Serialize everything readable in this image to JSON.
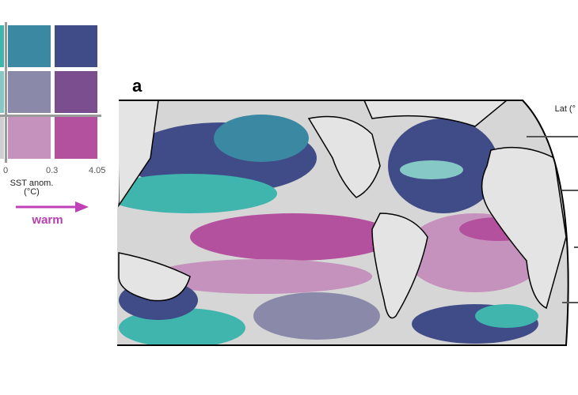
{
  "legend": {
    "cells": [
      [
        "#3fb5ae",
        "#3b88a2",
        "#3f4c88"
      ],
      [
        "#86c8c6",
        "#8a89a9",
        "#7a4e8f"
      ],
      [
        "#cfcfcf",
        "#c492bc",
        "#b4519f"
      ]
    ],
    "ticks": [
      "0",
      "0.3",
      "4.05"
    ],
    "xlabel": "SST anom.",
    "xunit": "(°C)",
    "arrow_label": "warm",
    "arrow_color": "#c040b8"
  },
  "panel_label": "a",
  "axis_label": "Lat (°",
  "colors": {
    "land": "#e4e4e4",
    "coast": "#000000"
  }
}
